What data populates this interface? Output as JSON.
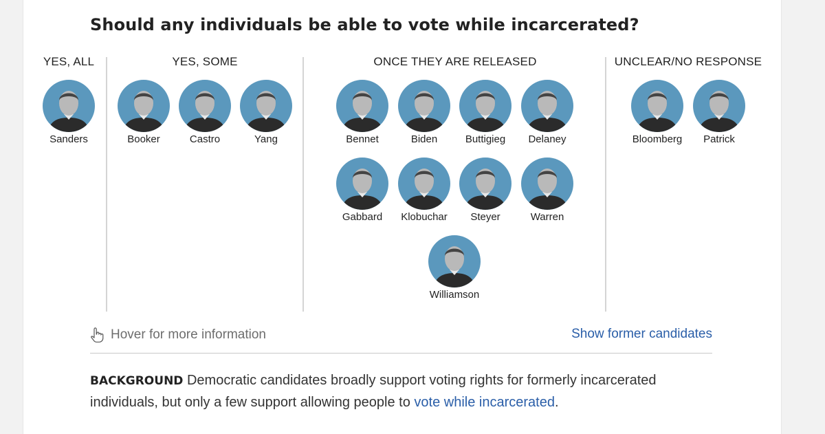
{
  "title": "Should any individuals be able to vote while incarcerated?",
  "columns": [
    {
      "heading": "YES, ALL",
      "candidates": [
        "Sanders"
      ]
    },
    {
      "heading": "YES, SOME",
      "candidates": [
        "Booker",
        "Castro",
        "Yang"
      ]
    },
    {
      "heading": "ONCE THEY ARE RELEASED",
      "candidates": [
        "Bennet",
        "Biden",
        "Buttigieg",
        "Delaney",
        "Gabbard",
        "Klobuchar",
        "Steyer",
        "Warren",
        "Williamson"
      ]
    },
    {
      "heading": "UNCLEAR/NO RESPONSE",
      "candidates": [
        "Bloomberg",
        "Patrick"
      ]
    }
  ],
  "footer": {
    "hover_hint": "Hover for more information",
    "show_former": "Show former candidates"
  },
  "background": {
    "label": "BACKGROUND",
    "text_before": " Democratic candidates broadly support voting rights for formerly incarcerated individuals, but only a few support allowing people to ",
    "link_text": "vote while incarcerated",
    "text_after": "."
  },
  "colors": {
    "avatar_bg": "#5b98bd",
    "link": "#2a5ea8"
  },
  "icons": {
    "hover_hint": "pointer-hand-icon"
  }
}
